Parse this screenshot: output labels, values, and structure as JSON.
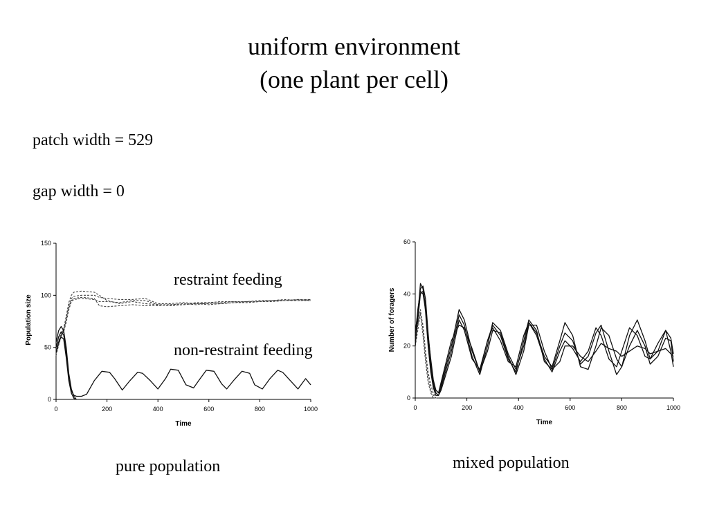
{
  "header": {
    "title_line1": "uniform environment",
    "title_line2": "(one plant per cell)"
  },
  "params": {
    "patch_width": "patch width = 529",
    "gap_width": "gap width = 0"
  },
  "captions": {
    "left": "pure population",
    "right": "mixed population"
  },
  "annotations": {
    "restraint": "restraint feeding",
    "non_restraint": "non-restraint feeding"
  },
  "chart_data": [
    {
      "type": "line",
      "xlabel": "Time",
      "ylabel": "Population size",
      "xlim": [
        0,
        1000
      ],
      "ylim": [
        0,
        150
      ],
      "xticks": [
        0,
        200,
        400,
        600,
        800,
        1000
      ],
      "yticks": [
        0,
        50,
        100,
        150
      ],
      "grid": false,
      "series": [
        {
          "style": "dashed",
          "x": [
            0,
            10,
            20,
            30,
            40,
            50,
            60,
            70,
            100,
            150,
            170,
            200,
            250,
            300,
            350,
            400,
            450,
            500,
            550,
            600,
            650,
            700,
            750,
            800,
            850,
            900,
            950,
            1000
          ],
          "y": [
            45,
            55,
            62,
            68,
            80,
            93,
            100,
            103,
            104,
            103,
            100,
            95,
            92,
            94,
            92,
            91,
            90,
            91,
            92,
            91,
            92,
            93,
            93,
            94,
            95,
            95,
            96,
            96
          ]
        },
        {
          "style": "dashed",
          "x": [
            0,
            10,
            20,
            30,
            40,
            50,
            60,
            70,
            100,
            150,
            170,
            200,
            250,
            300,
            350,
            400,
            450,
            500,
            550,
            600,
            650,
            700,
            750,
            800,
            850,
            900,
            950,
            1000
          ],
          "y": [
            42,
            52,
            60,
            66,
            78,
            90,
            97,
            99,
            100,
            100,
            98,
            97,
            96,
            96,
            97,
            92,
            92,
            93,
            92,
            92,
            93,
            94,
            94,
            95,
            95,
            95,
            96,
            95
          ]
        },
        {
          "style": "dashed",
          "x": [
            0,
            10,
            20,
            30,
            40,
            50,
            60,
            70,
            100,
            150,
            170,
            200,
            250,
            300,
            350,
            400,
            450,
            500,
            550,
            600,
            650,
            700,
            750,
            800,
            850,
            900,
            950,
            1000
          ],
          "y": [
            47,
            56,
            63,
            67,
            76,
            88,
            95,
            97,
            98,
            97,
            90,
            89,
            90,
            91,
            90,
            90,
            91,
            91,
            93,
            93,
            94,
            94,
            93,
            94,
            94,
            95,
            95,
            95
          ]
        },
        {
          "style": "dashed",
          "x": [
            0,
            10,
            20,
            30,
            40,
            50,
            60,
            70,
            100,
            150,
            170,
            200,
            250,
            300,
            350,
            400,
            450,
            500,
            550,
            600,
            650,
            700,
            750,
            800,
            850,
            900,
            950,
            1000
          ],
          "y": [
            44,
            53,
            61,
            65,
            74,
            86,
            94,
            96,
            97,
            96,
            94,
            94,
            93,
            95,
            95,
            91,
            91,
            92,
            91,
            93,
            92,
            93,
            94,
            94,
            95,
            96,
            95,
            96
          ]
        },
        {
          "style": "solid",
          "x": [
            0,
            10,
            20,
            30,
            40,
            50,
            60,
            70,
            80,
            100,
            120,
            150,
            180,
            210,
            230,
            260,
            290,
            320,
            340,
            370,
            400,
            430,
            450,
            480,
            510,
            540,
            560,
            590,
            620,
            650,
            670,
            700,
            730,
            760,
            780,
            810,
            840,
            870,
            890,
            920,
            950,
            980,
            1000
          ],
          "y": [
            50,
            60,
            65,
            62,
            45,
            20,
            8,
            4,
            3,
            3,
            5,
            18,
            27,
            26,
            20,
            9,
            18,
            26,
            25,
            18,
            10,
            20,
            29,
            28,
            14,
            11,
            18,
            28,
            27,
            15,
            10,
            19,
            27,
            25,
            14,
            10,
            20,
            28,
            26,
            18,
            10,
            20,
            14
          ]
        },
        {
          "style": "solid",
          "x": [
            0,
            10,
            20,
            30,
            40,
            50,
            60,
            70,
            80
          ],
          "y": [
            55,
            66,
            70,
            66,
            50,
            25,
            10,
            3,
            0
          ]
        },
        {
          "style": "solid",
          "x": [
            0,
            10,
            20,
            30,
            40,
            50,
            60,
            70,
            80
          ],
          "y": [
            45,
            55,
            60,
            58,
            40,
            18,
            6,
            1,
            0
          ]
        }
      ]
    },
    {
      "type": "line",
      "xlabel": "Time",
      "ylabel": "Number of foragers",
      "xlim": [
        0,
        1000
      ],
      "ylim": [
        0,
        60
      ],
      "xticks": [
        0,
        200,
        400,
        600,
        800,
        1000
      ],
      "yticks": [
        0,
        20,
        40,
        60
      ],
      "grid": false,
      "series": [
        {
          "style": "dashed",
          "x": [
            0,
            10,
            20,
            30,
            40,
            50,
            60,
            70,
            80
          ],
          "y": [
            22,
            28,
            34,
            26,
            16,
            8,
            3,
            1,
            0
          ]
        },
        {
          "style": "dashed",
          "x": [
            0,
            10,
            20,
            30,
            40,
            50,
            60,
            70,
            80,
            90
          ],
          "y": [
            20,
            26,
            33,
            28,
            18,
            10,
            5,
            2,
            0,
            0
          ]
        },
        {
          "style": "dashed",
          "x": [
            0,
            10,
            20,
            30,
            40,
            50,
            60,
            70,
            80
          ],
          "y": [
            24,
            29,
            32,
            24,
            14,
            6,
            2,
            0,
            0
          ]
        },
        {
          "style": "solid",
          "x": [
            0,
            10,
            20,
            30,
            40,
            50,
            60,
            70,
            80,
            90,
            100,
            140,
            170,
            190,
            220,
            250,
            280,
            300,
            330,
            360,
            390,
            420,
            440,
            470,
            500,
            530,
            560,
            580,
            610,
            640,
            670,
            700,
            720,
            750,
            780,
            800,
            830,
            860,
            890,
            910,
            940,
            970,
            990,
            1000
          ],
          "y": [
            25,
            33,
            42,
            43,
            38,
            25,
            14,
            6,
            3,
            2,
            5,
            20,
            34,
            30,
            18,
            10,
            22,
            28,
            24,
            15,
            10,
            22,
            30,
            26,
            14,
            11,
            20,
            25,
            22,
            13,
            16,
            25,
            28,
            18,
            9,
            12,
            24,
            30,
            22,
            15,
            18,
            26,
            23,
            17
          ]
        },
        {
          "style": "solid",
          "x": [
            0,
            10,
            20,
            30,
            40,
            50,
            60,
            70,
            80,
            90,
            100,
            140,
            170,
            190,
            220,
            250,
            280,
            300,
            330,
            360,
            390,
            420,
            440,
            470,
            500,
            530,
            560,
            580,
            610,
            640,
            670,
            700,
            720,
            750,
            780,
            800,
            830,
            860,
            890,
            910,
            940,
            970,
            990,
            1000
          ],
          "y": [
            22,
            30,
            40,
            41,
            36,
            22,
            12,
            5,
            2,
            1,
            4,
            18,
            32,
            28,
            16,
            9,
            20,
            29,
            26,
            17,
            11,
            20,
            29,
            25,
            16,
            12,
            22,
            29,
            24,
            12,
            11,
            20,
            27,
            24,
            15,
            12,
            20,
            26,
            20,
            13,
            16,
            23,
            22,
            14
          ]
        },
        {
          "style": "solid",
          "x": [
            0,
            10,
            20,
            30,
            40,
            50,
            60,
            70,
            80,
            90,
            100,
            140,
            170,
            190,
            220,
            250,
            280,
            300,
            330,
            360,
            390,
            420,
            440,
            470,
            500,
            530,
            560,
            580,
            610,
            640,
            670,
            700,
            720,
            750,
            780,
            800,
            830,
            860,
            890,
            910,
            940,
            970,
            990,
            1000
          ],
          "y": [
            20,
            32,
            44,
            42,
            33,
            20,
            10,
            4,
            1,
            1,
            3,
            16,
            30,
            26,
            15,
            11,
            22,
            27,
            22,
            14,
            12,
            24,
            29,
            24,
            15,
            10,
            18,
            22,
            19,
            14,
            18,
            27,
            24,
            15,
            12,
            18,
            27,
            24,
            16,
            15,
            21,
            26,
            18,
            12
          ]
        },
        {
          "style": "solid",
          "x": [
            0,
            10,
            20,
            30,
            40,
            50,
            60,
            70,
            80,
            90,
            100,
            140,
            170,
            190,
            220,
            250,
            280,
            300,
            330,
            360,
            390,
            420,
            440,
            470,
            500,
            530,
            560,
            580,
            610,
            640,
            670,
            700,
            720,
            750,
            780,
            800,
            830,
            860,
            890,
            910,
            940,
            970,
            990,
            1000
          ],
          "y": [
            24,
            34,
            41,
            40,
            34,
            24,
            15,
            7,
            3,
            2,
            6,
            22,
            28,
            27,
            19,
            10,
            18,
            26,
            25,
            16,
            9,
            18,
            28,
            28,
            18,
            11,
            14,
            20,
            20,
            16,
            14,
            18,
            21,
            19,
            18,
            16,
            18,
            20,
            19,
            17,
            18,
            19,
            17,
            16
          ]
        }
      ]
    }
  ]
}
